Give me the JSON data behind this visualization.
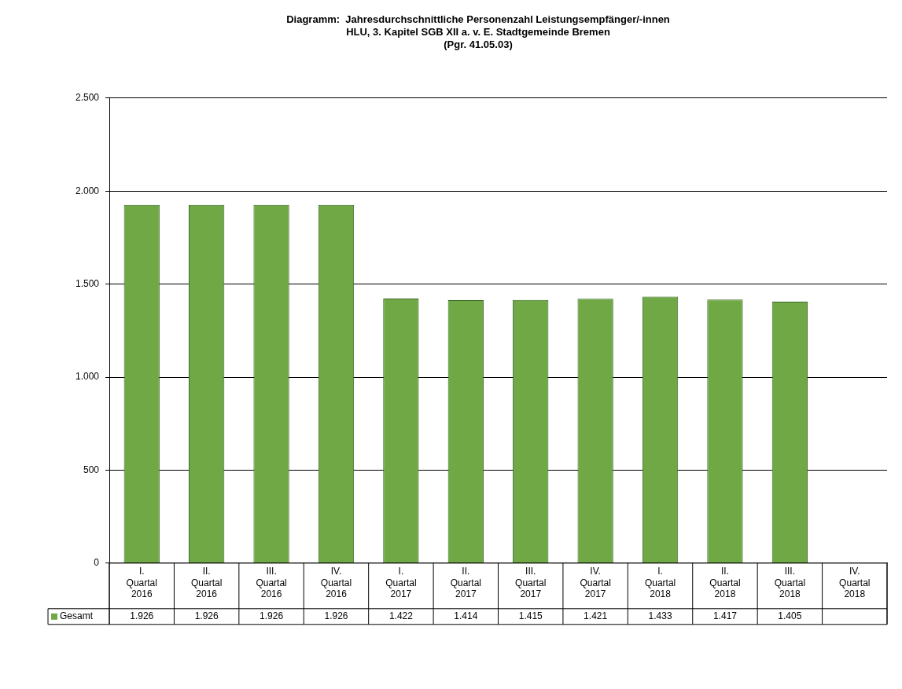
{
  "chart_data": {
    "type": "bar",
    "title": "Diagramm:  Jahresdurchschnittliche Personenzahl Leistungsempfänger/-innen\nHLU, 3. Kapitel SGB XII a. v. E. Stadtgemeinde Bremen\n(Pgr. 41.05.03)",
    "categories": [
      "I. Quartal 2016",
      "II. Quartal 2016",
      "III. Quartal 2016",
      "IV. Quartal 2016",
      "I. Quartal 2017",
      "II. Quartal 2017",
      "III. Quartal 2017",
      "IV. Quartal 2017",
      "I. Quartal 2018",
      "II. Quartal 2018",
      "III. Quartal 2018",
      "IV. Quartal 2018"
    ],
    "series": [
      {
        "name": "Gesamt",
        "color": "#70a845",
        "values": [
          1926,
          1926,
          1926,
          1926,
          1422,
          1414,
          1415,
          1421,
          1433,
          1417,
          1405,
          null
        ],
        "value_labels": [
          "1.926",
          "1.926",
          "1.926",
          "1.926",
          "1.422",
          "1.414",
          "1.415",
          "1.421",
          "1.433",
          "1.417",
          "1.405",
          null
        ]
      }
    ],
    "ylim": [
      0,
      2500
    ],
    "yticks": [
      0,
      500,
      {
        "value": 1000,
        "label": "1.000"
      },
      {
        "value": 1500,
        "label": "1.500"
      },
      {
        "value": 2000,
        "label": "2.000"
      },
      {
        "value": 2500,
        "label": "2.500"
      }
    ],
    "grid": "y",
    "legend": "bottom left"
  }
}
